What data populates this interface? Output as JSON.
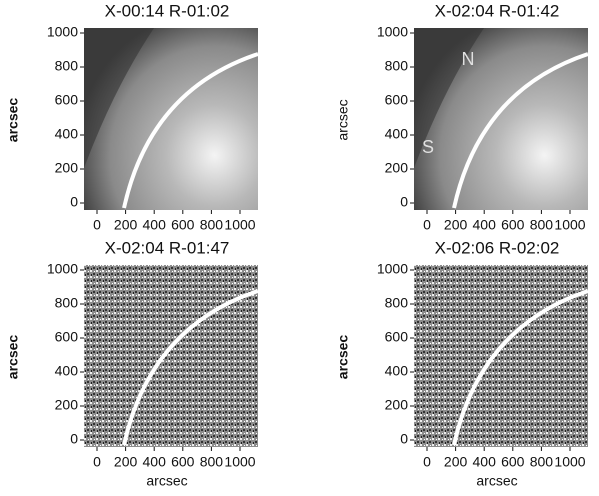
{
  "chart_data": [
    {
      "type": "image",
      "title": "X-00:14 R-01:02",
      "ylabel": "arcsec",
      "xlim": [
        0,
        1000
      ],
      "ylim": [
        0,
        1000
      ],
      "xticks": [
        0,
        200,
        400,
        600,
        800,
        1000
      ],
      "yticks": [
        0,
        200,
        400,
        600,
        800,
        1000
      ]
    },
    {
      "type": "image",
      "title": "X-02:04 R-01:42",
      "ylabel": "arcsec",
      "annotations": [
        "N",
        "S"
      ],
      "xlim": [
        0,
        1000
      ],
      "ylim": [
        0,
        1000
      ],
      "xticks": [
        0,
        200,
        400,
        600,
        800,
        1000
      ],
      "yticks": [
        0,
        200,
        400,
        600,
        800,
        1000
      ]
    },
    {
      "type": "image",
      "title": "X-02:04 R-01:47",
      "ylabel": "arcsec",
      "xlabel": "arcsec",
      "xlim": [
        0,
        1000
      ],
      "ylim": [
        0,
        1000
      ],
      "xticks": [
        0,
        200,
        400,
        600,
        800,
        1000
      ],
      "yticks": [
        0,
        200,
        400,
        600,
        800,
        1000
      ]
    },
    {
      "type": "image",
      "title": "X-02:06 R-02:02",
      "ylabel": "arcsec",
      "xlabel": "arcsec",
      "xlim": [
        0,
        1000
      ],
      "ylim": [
        0,
        1000
      ],
      "xticks": [
        0,
        200,
        400,
        600,
        800,
        1000
      ],
      "yticks": [
        0,
        200,
        400,
        600,
        800,
        1000
      ]
    }
  ]
}
